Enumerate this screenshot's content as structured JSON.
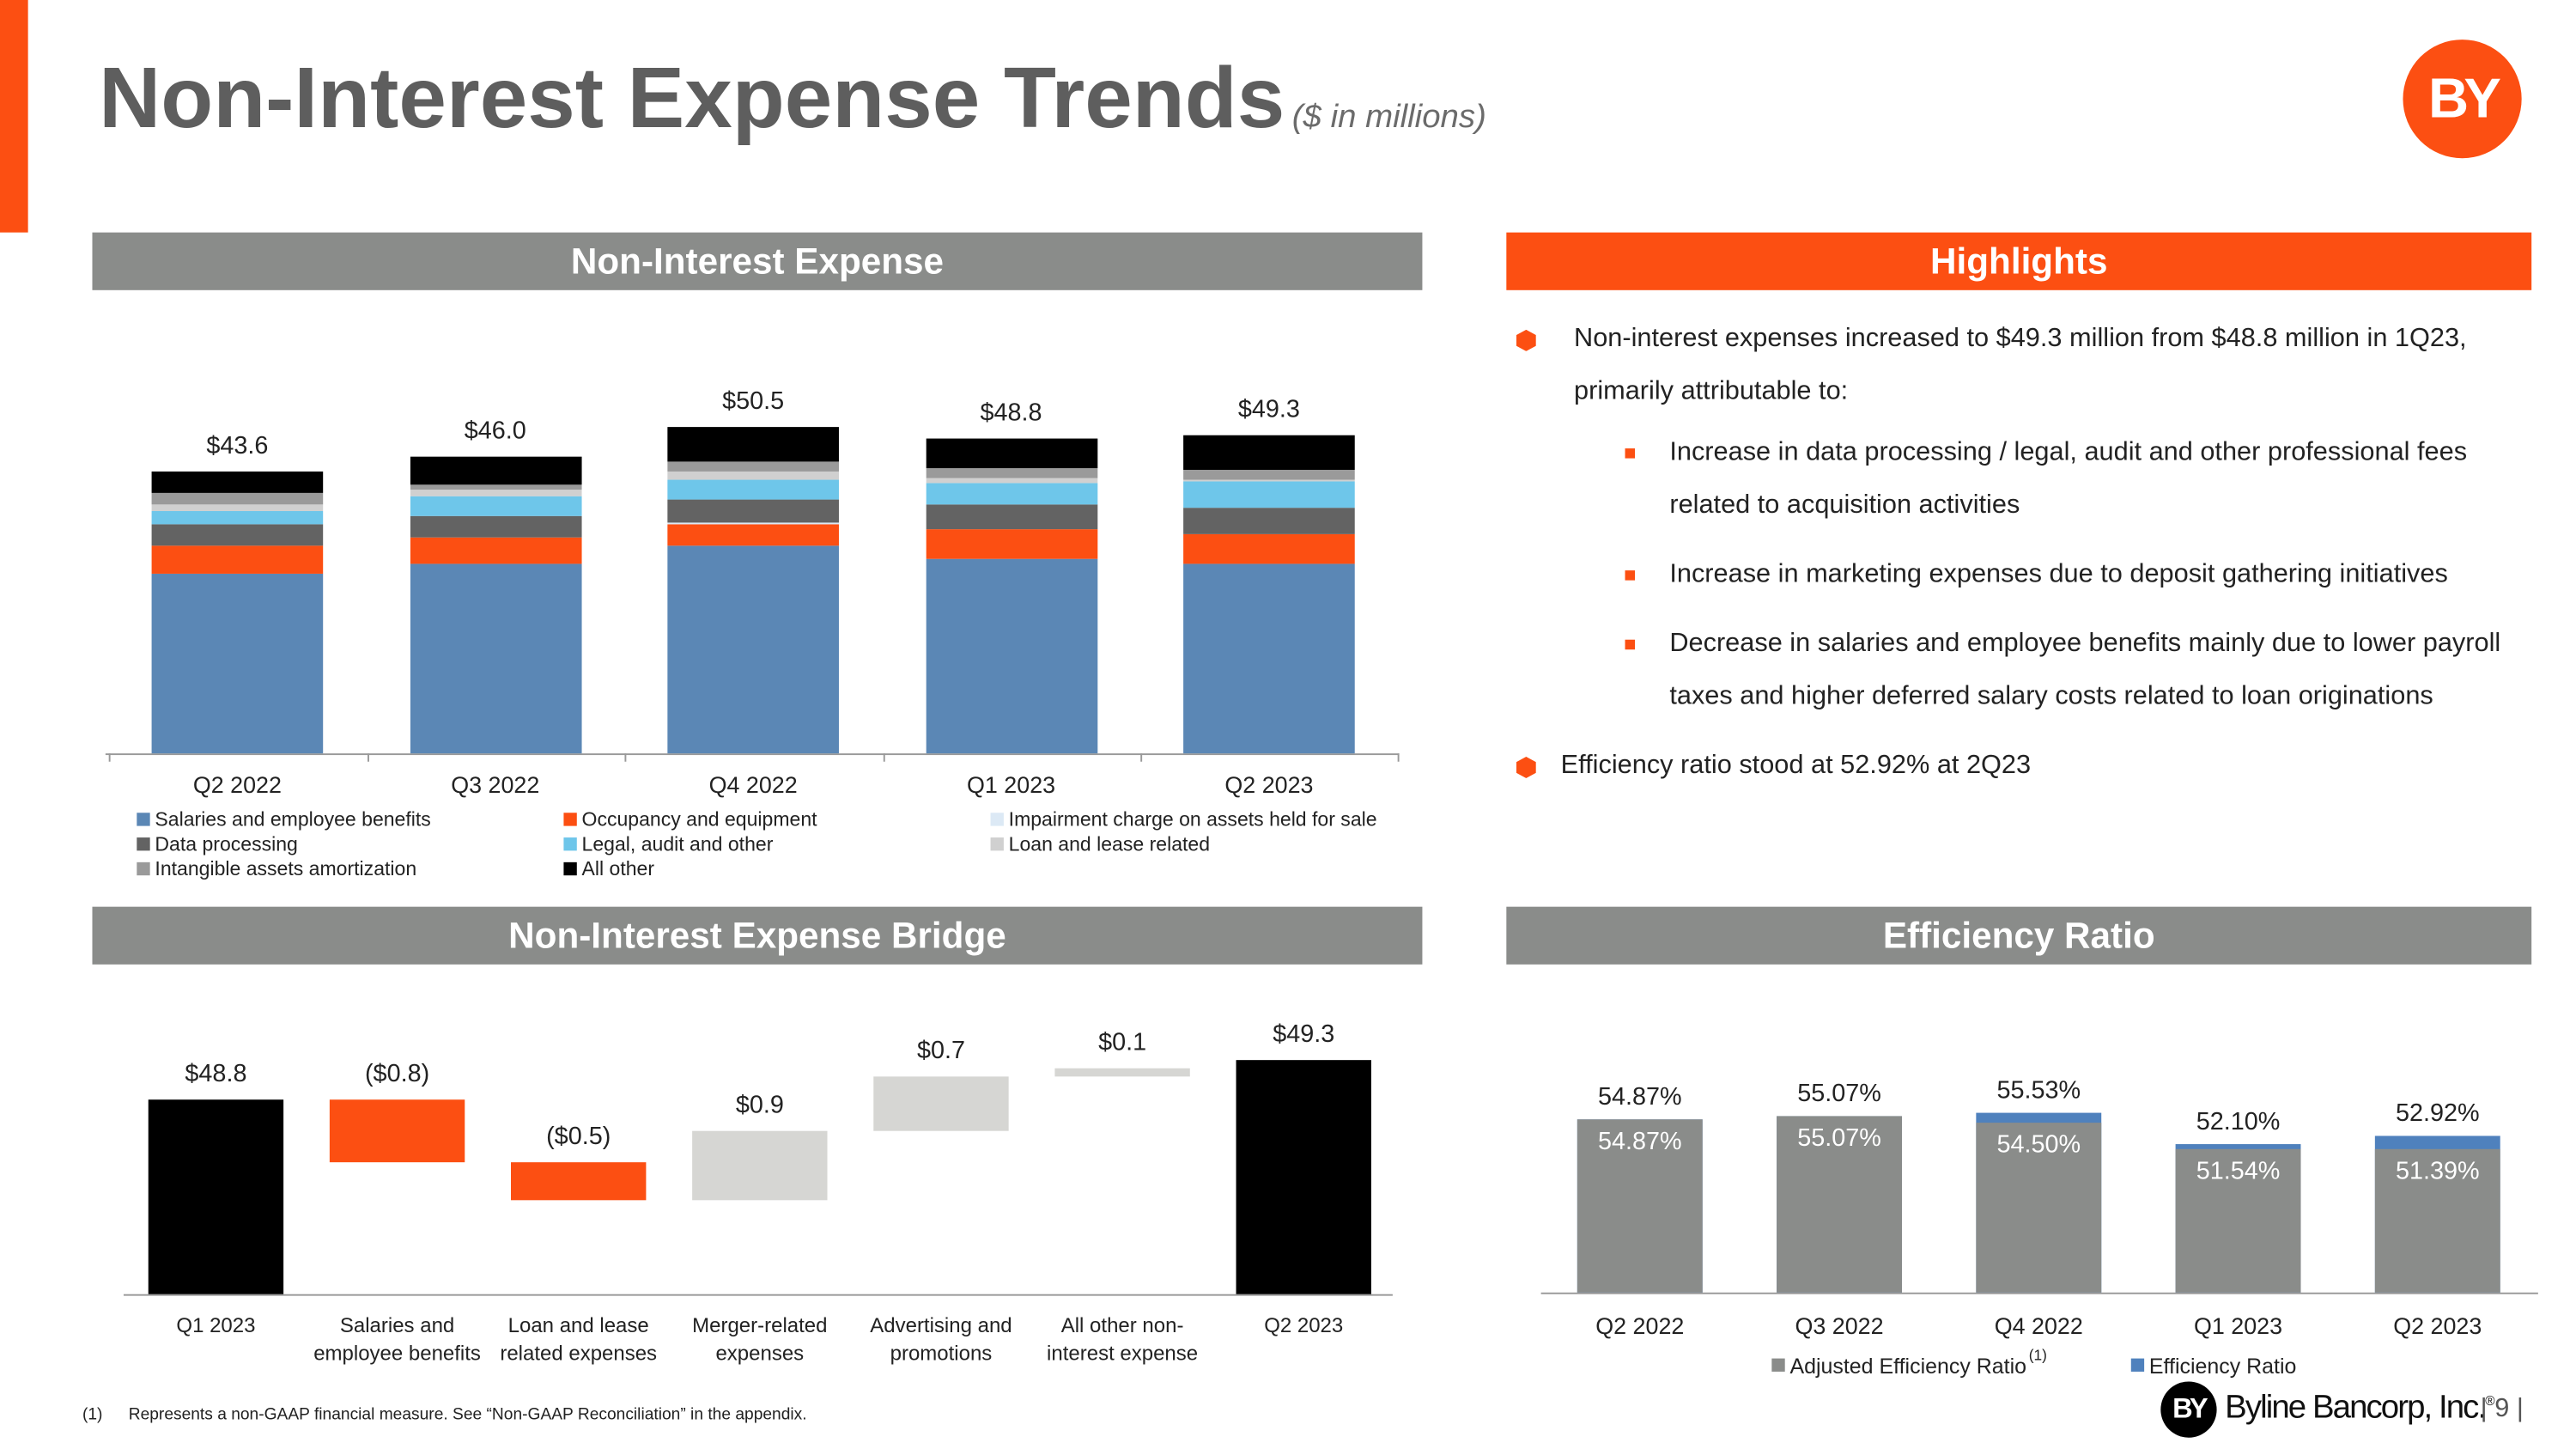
{
  "header": {
    "title": "Non-Interest Expense Trends",
    "subtitle": "($ in millions)",
    "logo": "BY"
  },
  "panels": {
    "expense": "Non-Interest Expense",
    "highlights": "Highlights",
    "bridge": "Non-Interest Expense Bridge",
    "efficiency": "Efficiency Ratio"
  },
  "highlights": {
    "items": [
      {
        "text": "Non-interest expenses increased to $49.3 million from $48.8 million in 1Q23, primarily attributable to:",
        "subitems": [
          "Increase in data processing / legal, audit and other professional fees related to acquisition activities",
          "Increase in marketing expenses due to deposit gathering initiatives",
          "Decrease in salaries and employee benefits mainly due to lower payroll taxes and higher deferred salary costs related to loan originations"
        ]
      },
      {
        "text": "Efficiency ratio stood at 52.92% at 2Q23",
        "subitems": []
      }
    ]
  },
  "footnote": {
    "marker": "(1)",
    "text": "Represents a non-GAAP financial measure.  See “Non-GAAP Reconciliation” in the appendix."
  },
  "footer": {
    "logo": "BY",
    "company": "Byline Bancorp, Inc.",
    "trademark": "®",
    "page": "9"
  },
  "chart_data": [
    {
      "type": "stacked_bar",
      "categories": [
        "Q2 2022",
        "Q3 2022",
        "Q4 2022",
        "Q1 2023",
        "Q2 2023"
      ],
      "series": [
        {
          "name": "Salaries and employee benefits",
          "color": "#5b87b5",
          "values": [
            27.8,
            29.4,
            32.1,
            30.2,
            29.3
          ]
        },
        {
          "name": "Occupancy and equipment",
          "color": "#fc4f12",
          "values": [
            4.3,
            4.1,
            3.3,
            4.6,
            4.6
          ]
        },
        {
          "name": "Impairment charge on assets held for sale",
          "color": "#dce9f5",
          "values": [
            0,
            0,
            0.3,
            0,
            0
          ]
        },
        {
          "name": "Data processing",
          "color": "#636363",
          "values": [
            3.3,
            3.3,
            3.6,
            3.8,
            4.1
          ]
        },
        {
          "name": "Legal, audit and other",
          "color": "#6ec6ea",
          "values": [
            2.0,
            3.1,
            3.1,
            3.3,
            4.1
          ]
        },
        {
          "name": "Loan and lease related",
          "color": "#d0d0d0",
          "values": [
            1.0,
            0.8,
            1.3,
            0.8,
            0.3
          ]
        },
        {
          "name": "Intangible assets amortization",
          "color": "#9a9a9a",
          "values": [
            1.8,
            1.0,
            1.5,
            1.5,
            1.5
          ]
        },
        {
          "name": "All other",
          "color": "#000000",
          "values": [
            3.4,
            4.3,
            5.3,
            4.6,
            5.4
          ]
        }
      ],
      "totals": [
        43.6,
        46.0,
        50.5,
        48.8,
        49.3
      ],
      "total_labels": [
        "$43.6",
        "$46.0",
        "$50.5",
        "$48.8",
        "$49.3"
      ]
    },
    {
      "type": "waterfall",
      "categories": [
        "Q1 2023",
        "Salaries and employee benefits",
        "Loan and lease related expenses",
        "Merger-related expenses",
        "Advertising and promotions",
        "All other non-interest expense",
        "Q2 2023"
      ],
      "values": [
        48.8,
        -0.8,
        -0.5,
        0.9,
        0.7,
        0.1,
        49.3
      ],
      "value_labels": [
        "$48.8",
        "($0.8)",
        "($0.5)",
        "$0.9",
        "$0.7",
        "$0.1",
        "$49.3"
      ],
      "measure": [
        "total",
        "relative",
        "relative",
        "relative",
        "relative",
        "relative",
        "total"
      ],
      "colors": {
        "total": "#000000",
        "decrease": "#fc4f12",
        "increase": "#d6d6d3"
      },
      "ylim": [
        46.3,
        49.9
      ]
    },
    {
      "type": "overlap_bar",
      "categories": [
        "Q2 2022",
        "Q3 2022",
        "Q4 2022",
        "Q1 2023",
        "Q2 2023"
      ],
      "series": [
        {
          "name": "Adjusted Efficiency Ratio",
          "legend_note": "(1)",
          "color": "#8a8c8a",
          "label_position": "inside",
          "values": [
            54.87,
            55.07,
            54.5,
            51.54,
            51.39
          ],
          "value_labels": [
            "54.87%",
            "55.07%",
            "54.50%",
            "51.54%",
            "51.39%"
          ]
        },
        {
          "name": "Efficiency Ratio",
          "color": "#4f81bd",
          "label_position": "above",
          "values": [
            54.87,
            55.07,
            55.53,
            52.1,
            52.92
          ],
          "value_labels": [
            "54.87%",
            "55.07%",
            "55.53%",
            "52.10%",
            "52.92%"
          ]
        }
      ],
      "ylim": [
        35.4,
        57
      ]
    }
  ]
}
